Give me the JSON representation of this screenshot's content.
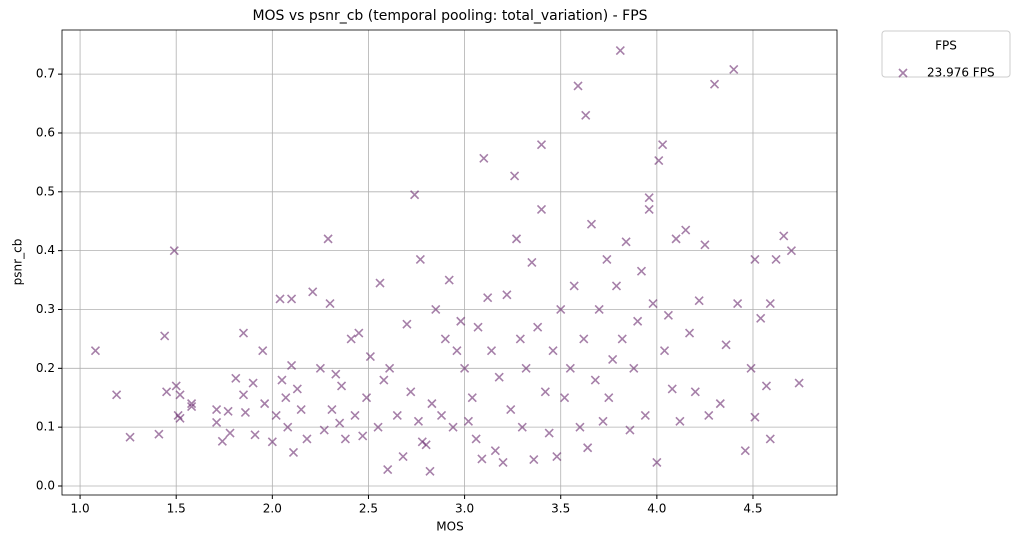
{
  "chart_data": {
    "type": "scatter",
    "title": "MOS vs psnr_cb (temporal pooling: total_variation) - FPS",
    "x_label": "MOS",
    "y_label": "psnr_cb",
    "legend_title": "FPS",
    "legend": "outside-upper-right",
    "grid": true,
    "marker": "x",
    "xlim": [
      0.906,
      4.937
    ],
    "ylim": [
      -0.0153,
      0.775
    ],
    "xticks": [
      {
        "value": 1,
        "label": "1.0"
      },
      1.5,
      {
        "value": 2,
        "label": "2.0"
      },
      2.5,
      {
        "value": 3,
        "label": "3.0"
      },
      3.5,
      {
        "value": 4,
        "label": "4.0"
      },
      4.5
    ],
    "yticks": [
      {
        "value": 0,
        "label": "0.0"
      },
      0.1,
      0.2,
      0.3,
      0.4,
      0.5,
      0.6,
      0.7
    ],
    "series": [
      {
        "name": "23.976 FPS",
        "color": "#6a2c70",
        "x": [
          1.08,
          1.19,
          1.26,
          1.41,
          1.44,
          1.45,
          1.49,
          1.5,
          1.51,
          1.52,
          1.52,
          1.58,
          1.58,
          1.71,
          1.71,
          1.74,
          1.77,
          1.78,
          1.81,
          1.85,
          1.85,
          1.86,
          1.9,
          1.91,
          1.95,
          1.96,
          2.0,
          2.02,
          2.04,
          2.05,
          2.07,
          2.08,
          2.1,
          2.1,
          2.11,
          2.13,
          2.15,
          2.18,
          2.21,
          2.25,
          2.27,
          2.29,
          2.3,
          2.31,
          2.33,
          2.35,
          2.36,
          2.38,
          2.41,
          2.43,
          2.45,
          2.47,
          2.49,
          2.51,
          2.55,
          2.56,
          2.58,
          2.6,
          2.61,
          2.65,
          2.68,
          2.7,
          2.72,
          2.74,
          2.76,
          2.77,
          2.78,
          2.8,
          2.82,
          2.83,
          2.85,
          2.88,
          2.9,
          2.92,
          2.94,
          2.96,
          2.98,
          3.0,
          3.02,
          3.04,
          3.06,
          3.07,
          3.09,
          3.1,
          3.12,
          3.14,
          3.16,
          3.18,
          3.2,
          3.22,
          3.24,
          3.26,
          3.27,
          3.29,
          3.3,
          3.32,
          3.35,
          3.36,
          3.38,
          3.4,
          3.4,
          3.42,
          3.44,
          3.46,
          3.48,
          3.5,
          3.52,
          3.55,
          3.57,
          3.59,
          3.6,
          3.62,
          3.63,
          3.64,
          3.66,
          3.68,
          3.7,
          3.72,
          3.74,
          3.75,
          3.77,
          3.79,
          3.81,
          3.82,
          3.84,
          3.86,
          3.88,
          3.9,
          3.92,
          3.94,
          3.96,
          3.96,
          3.98,
          4.0,
          4.01,
          4.03,
          4.04,
          4.06,
          4.08,
          4.1,
          4.12,
          4.15,
          4.17,
          4.2,
          4.22,
          4.25,
          4.27,
          4.3,
          4.33,
          4.36,
          4.4,
          4.42,
          4.46,
          4.49,
          4.51,
          4.51,
          4.54,
          4.57,
          4.59,
          4.59,
          4.62,
          4.66,
          4.7,
          4.74
        ],
        "values": [
          0.23,
          0.155,
          0.083,
          0.088,
          0.255,
          0.16,
          0.4,
          0.17,
          0.12,
          0.115,
          0.155,
          0.14,
          0.135,
          0.108,
          0.13,
          0.076,
          0.127,
          0.09,
          0.183,
          0.26,
          0.155,
          0.125,
          0.175,
          0.087,
          0.23,
          0.14,
          0.075,
          0.12,
          0.318,
          0.18,
          0.15,
          0.1,
          0.318,
          0.205,
          0.057,
          0.165,
          0.13,
          0.08,
          0.33,
          0.2,
          0.095,
          0.42,
          0.31,
          0.13,
          0.19,
          0.107,
          0.17,
          0.08,
          0.25,
          0.12,
          0.26,
          0.085,
          0.15,
          0.22,
          0.1,
          0.345,
          0.18,
          0.028,
          0.2,
          0.12,
          0.05,
          0.275,
          0.16,
          0.495,
          0.11,
          0.385,
          0.075,
          0.07,
          0.025,
          0.14,
          0.3,
          0.12,
          0.25,
          0.35,
          0.1,
          0.23,
          0.28,
          0.2,
          0.11,
          0.15,
          0.08,
          0.27,
          0.046,
          0.557,
          0.32,
          0.23,
          0.06,
          0.185,
          0.04,
          0.325,
          0.13,
          0.527,
          0.42,
          0.25,
          0.1,
          0.2,
          0.38,
          0.045,
          0.27,
          0.47,
          0.58,
          0.16,
          0.09,
          0.23,
          0.05,
          0.3,
          0.15,
          0.2,
          0.34,
          0.68,
          0.1,
          0.25,
          0.63,
          0.065,
          0.445,
          0.18,
          0.3,
          0.11,
          0.385,
          0.15,
          0.215,
          0.34,
          0.74,
          0.25,
          0.415,
          0.095,
          0.2,
          0.28,
          0.365,
          0.12,
          0.49,
          0.47,
          0.31,
          0.04,
          0.553,
          0.58,
          0.23,
          0.29,
          0.165,
          0.42,
          0.11,
          0.435,
          0.26,
          0.16,
          0.315,
          0.41,
          0.12,
          0.683,
          0.14,
          0.24,
          0.708,
          0.31,
          0.06,
          0.2,
          0.385,
          0.117,
          0.285,
          0.17,
          0.08,
          0.31,
          0.385,
          0.425,
          0.4,
          0.175
        ]
      }
    ]
  }
}
